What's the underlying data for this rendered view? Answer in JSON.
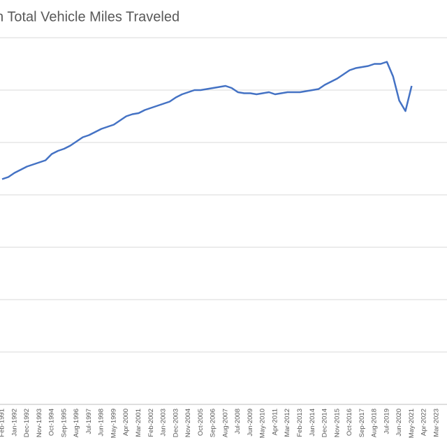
{
  "chart_data": {
    "type": "line",
    "title": "n Total Vehicle Miles Traveled",
    "categories": [
      "Feb-1991",
      null,
      "Jan-1992",
      null,
      "Dec-1992",
      null,
      "Nov-1993",
      null,
      "Oct-1994",
      null,
      "Sep-1995",
      null,
      "Aug-1996",
      null,
      "Jul-1997",
      null,
      "Jun-1998",
      null,
      "May-1999",
      null,
      "Apr-2000",
      null,
      "Mar-2001",
      null,
      "Feb-2002",
      null,
      "Jan-2003",
      null,
      "Dec-2003",
      null,
      "Nov-2004",
      null,
      "Oct-2005",
      null,
      "Sep-2006",
      null,
      "Aug-2007",
      null,
      "Jul-2008",
      null,
      "Jun-2009",
      null,
      "May-2010",
      null,
      "Apr-2011",
      null,
      "Mar-2012",
      null,
      "Feb-2013",
      null,
      "Jan-2014",
      null,
      "Dec-2014",
      null,
      "Nov-2015",
      null,
      "Oct-2016",
      null,
      "Sep-2017",
      null,
      "Aug-2018",
      null,
      "Jul-2019",
      null,
      "Jun-2020",
      null,
      "May-2021",
      null,
      "Apr-2022",
      null,
      "Mar-2023"
    ],
    "values": [
      2150,
      2170,
      2210,
      2240,
      2270,
      2290,
      2310,
      2330,
      2390,
      2420,
      2440,
      2470,
      2510,
      2550,
      2570,
      2600,
      2630,
      2650,
      2670,
      2710,
      2750,
      2770,
      2780,
      2810,
      2830,
      2850,
      2870,
      2890,
      2930,
      2960,
      2980,
      3000,
      3000,
      3010,
      3020,
      3030,
      3040,
      3020,
      2980,
      2970,
      2970,
      2960,
      2970,
      2980,
      2960,
      2970,
      2980,
      2980,
      2980,
      2990,
      3000,
      3010,
      3050,
      3080,
      3110,
      3150,
      3190,
      3210,
      3220,
      3230,
      3250,
      3250,
      3270,
      3130,
      2900,
      2800,
      3040,
      null,
      null,
      null,
      null
    ],
    "color": "#4472c4",
    "ylim": [
      0,
      3500
    ],
    "yticks": [
      0,
      500,
      1000,
      1500,
      2000,
      2500,
      3000,
      3500
    ],
    "grid": true
  }
}
